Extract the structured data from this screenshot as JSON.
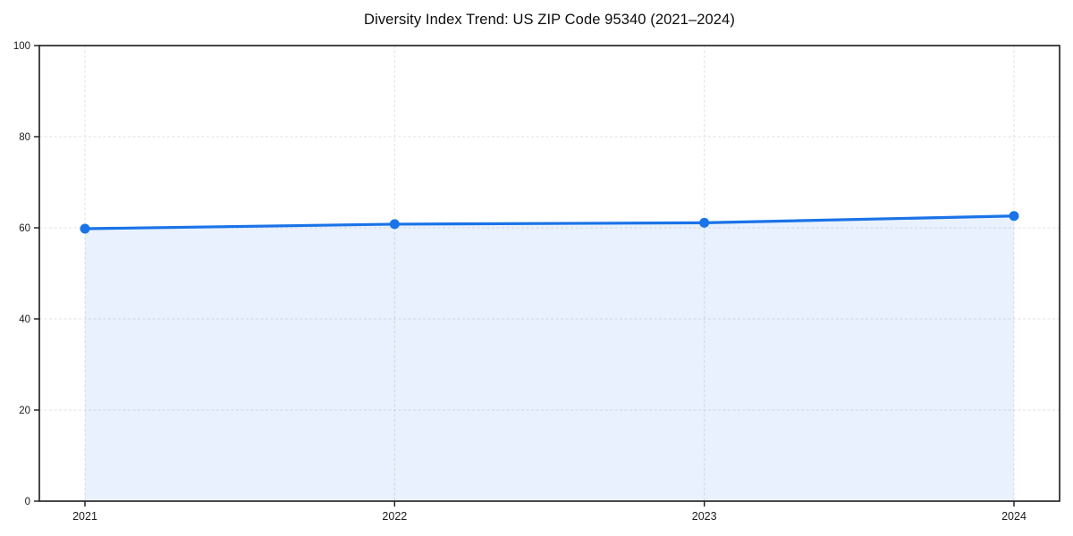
{
  "title": "Diversity Index Trend: US ZIP Code 95340 (2021–2024)",
  "chart_data": {
    "type": "area",
    "title": "Diversity Index Trend: US ZIP Code 95340 (2021–2024)",
    "x": [
      2021,
      2022,
      2023,
      2024
    ],
    "categories": [
      "2021",
      "2022",
      "2023",
      "2024"
    ],
    "series": [
      {
        "name": "Diversity Index",
        "values": [
          59.8,
          60.8,
          61.1,
          62.6
        ]
      }
    ],
    "xlabel": "",
    "ylabel": "",
    "ylim": [
      0,
      100
    ],
    "yticks": [
      0,
      20,
      40,
      60,
      80,
      100
    ],
    "grid": true,
    "grid_style": "dashed",
    "legend_position": "none",
    "marker": "circle",
    "colors": {
      "line": "#1a73e8",
      "marker": "#1a73e8",
      "fill": "rgba(26,115,232,0.10)",
      "grid": "#e0e0e0",
      "axis": "#1a1a1a",
      "tick_label": "#1a1a1a",
      "background": "#ffffff"
    }
  }
}
